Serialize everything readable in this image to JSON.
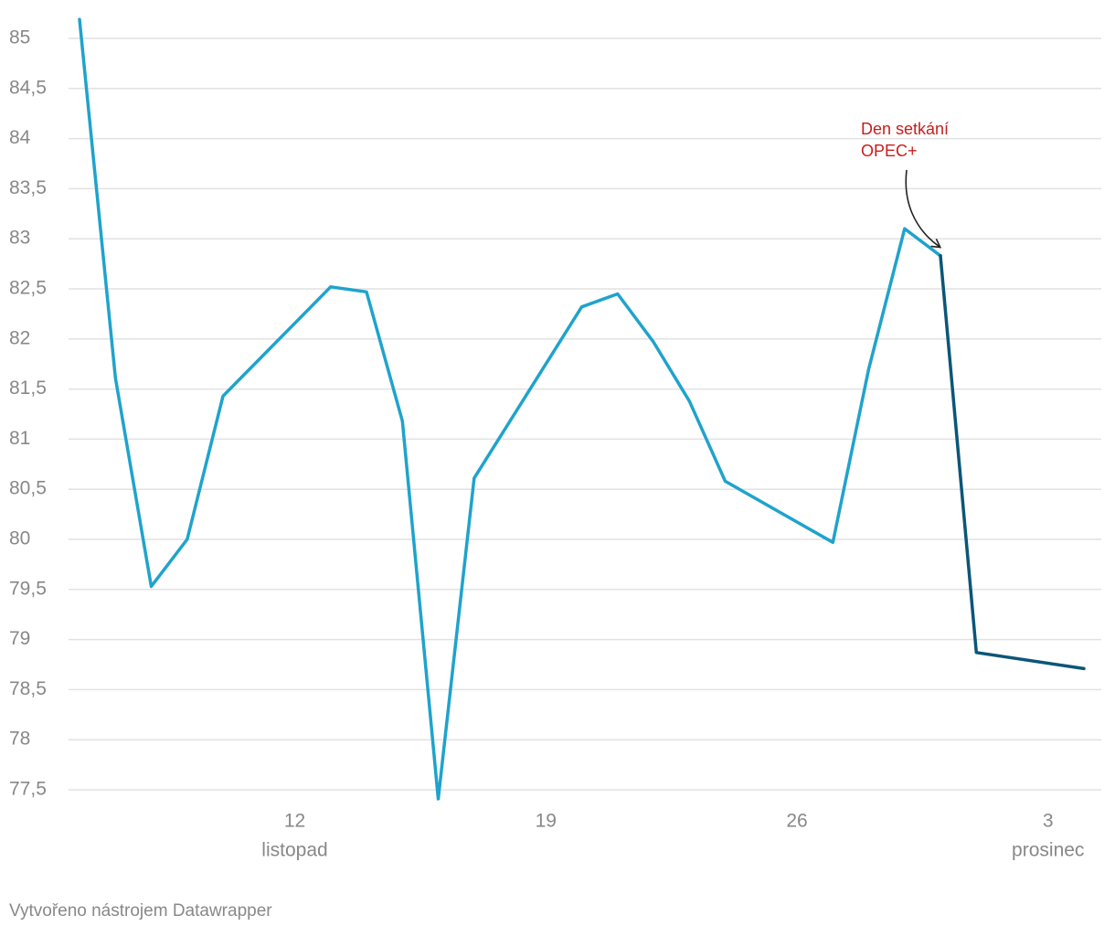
{
  "chart_data": {
    "type": "line",
    "x": [
      "11-06",
      "11-07",
      "11-08",
      "11-09",
      "11-10",
      "11-13",
      "11-14",
      "11-15",
      "11-16",
      "11-17",
      "11-20",
      "11-21",
      "11-22",
      "11-23",
      "11-24",
      "11-27",
      "11-28",
      "11-29",
      "11-30",
      "12-01",
      "12-04"
    ],
    "series": [
      {
        "color": "#1fa3cc",
        "values": [
          85.19,
          81.61,
          79.53,
          80.0,
          81.43,
          82.52,
          82.47,
          81.18,
          77.41,
          80.61,
          82.32,
          82.45,
          81.97,
          81.38,
          80.58,
          79.97,
          81.7,
          83.1,
          82.83,
          null,
          null
        ]
      },
      {
        "color": "#0b5678",
        "values": [
          null,
          null,
          null,
          null,
          null,
          null,
          null,
          null,
          null,
          null,
          null,
          null,
          null,
          null,
          null,
          null,
          null,
          null,
          82.83,
          78.87,
          78.71
        ]
      }
    ],
    "xlim": [
      "11-06",
      "12-04"
    ],
    "xticks": [
      {
        "value": "11-12",
        "label": "12",
        "sublabel": "listopad"
      },
      {
        "value": "11-19",
        "label": "19"
      },
      {
        "value": "11-26",
        "label": "26"
      },
      {
        "value": "12-03",
        "label": "3",
        "sublabel": "prosinec"
      }
    ],
    "ylim": [
      77.5,
      85
    ],
    "yticks": [
      {
        "value": 77.5,
        "label": "77,5"
      },
      78,
      {
        "value": 78.5,
        "label": "78,5"
      },
      79,
      {
        "value": 79.5,
        "label": "79,5"
      },
      80,
      {
        "value": 80.5,
        "label": "80,5"
      },
      81,
      {
        "value": 81.5,
        "label": "81,5"
      },
      82,
      {
        "value": 82.5,
        "label": "82,5"
      },
      83,
      {
        "value": 83.5,
        "label": "83,5"
      },
      84,
      {
        "value": 84.5,
        "label": "84,5"
      },
      85
    ],
    "grid": true,
    "annotation": [
      "Den setkání",
      "OPEC+"
    ],
    "annotation_color": "#c71e1d",
    "footer": "Vytvořeno nástrojem Datawrapper"
  }
}
